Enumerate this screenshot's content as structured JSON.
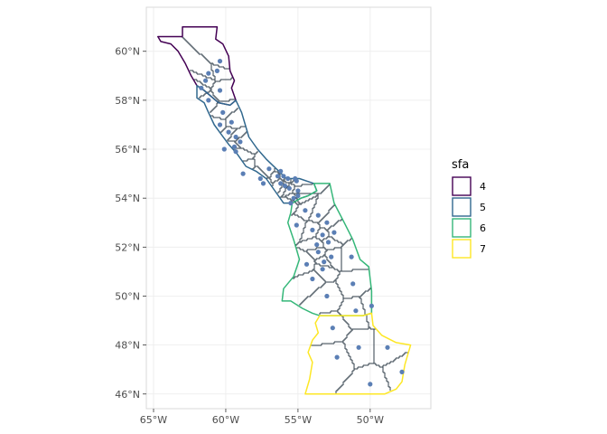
{
  "chart_data": {
    "type": "map",
    "title": "",
    "xlabel": "",
    "ylabel": "",
    "xlim": [
      -65.5,
      -45.8
    ],
    "ylim": [
      45.4,
      61.8
    ],
    "grid": true,
    "x_ticks": [
      {
        "value": -65,
        "label": "65°W"
      },
      {
        "value": -60,
        "label": "60°W"
      },
      {
        "value": -55,
        "label": "55°W"
      },
      {
        "value": -50,
        "label": "50°W"
      }
    ],
    "y_ticks": [
      {
        "value": 46,
        "label": "46°N"
      },
      {
        "value": 48,
        "label": "48°N"
      },
      {
        "value": 50,
        "label": "50°N"
      },
      {
        "value": 52,
        "label": "52°N"
      },
      {
        "value": 54,
        "label": "54°N"
      },
      {
        "value": 56,
        "label": "56°N"
      },
      {
        "value": 58,
        "label": "58°N"
      },
      {
        "value": 60,
        "label": "60°N"
      }
    ],
    "legend": {
      "title": "sfa",
      "position": "right",
      "items": [
        {
          "label": "4",
          "color": "#440154"
        },
        {
          "label": "5",
          "color": "#31688e"
        },
        {
          "label": "6",
          "color": "#35b779"
        },
        {
          "label": "7",
          "color": "#fde725"
        }
      ]
    },
    "colors": {
      "cells": "#2f3d48",
      "points": "#5b7fb5",
      "grid": "#ebebeb",
      "panel_border": "#d9d9d9"
    },
    "regions": [
      {
        "sfa": "4",
        "outline": [
          [
            -63,
            61
          ],
          [
            -60.6,
            61
          ],
          [
            -60.7,
            60.5
          ],
          [
            -60.2,
            60.3
          ],
          [
            -59.8,
            59.8
          ],
          [
            -59.7,
            59.2
          ],
          [
            -59.4,
            58.8
          ],
          [
            -59.6,
            58.5
          ],
          [
            -59.3,
            58.0
          ],
          [
            -59.7,
            57.8
          ],
          [
            -60.5,
            57.9
          ],
          [
            -61.5,
            58.4
          ],
          [
            -62.0,
            58.6
          ],
          [
            -62.4,
            59.0
          ],
          [
            -62.8,
            59.5
          ],
          [
            -63.3,
            60.0
          ],
          [
            -63.8,
            60.3
          ],
          [
            -64.5,
            60.4
          ],
          [
            -64.7,
            60.6
          ],
          [
            -63.0,
            60.6
          ],
          [
            -63,
            61
          ]
        ]
      },
      {
        "sfa": "5",
        "outline": [
          [
            -62.0,
            58.6
          ],
          [
            -61.5,
            58.4
          ],
          [
            -60.5,
            57.9
          ],
          [
            -59.7,
            57.8
          ],
          [
            -59.3,
            58.0
          ],
          [
            -58.9,
            57.5
          ],
          [
            -58.4,
            56.5
          ],
          [
            -57.8,
            56.0
          ],
          [
            -57.2,
            55.6
          ],
          [
            -56.5,
            55.2
          ],
          [
            -55.8,
            54.8
          ],
          [
            -54.9,
            54.8
          ],
          [
            -53.9,
            54.6
          ],
          [
            -53.7,
            54.3
          ],
          [
            -54.3,
            54.1
          ],
          [
            -54.8,
            54.0
          ],
          [
            -55.4,
            53.8
          ],
          [
            -56.0,
            53.8
          ],
          [
            -56.6,
            54.3
          ],
          [
            -57.2,
            54.8
          ],
          [
            -57.9,
            55.1
          ],
          [
            -58.6,
            55.3
          ],
          [
            -59.2,
            55.8
          ],
          [
            -59.8,
            56.2
          ],
          [
            -60.3,
            56.6
          ],
          [
            -60.8,
            57.0
          ],
          [
            -61.2,
            57.5
          ],
          [
            -61.5,
            57.9
          ],
          [
            -62.0,
            58.1
          ],
          [
            -62.0,
            58.6
          ]
        ]
      },
      {
        "sfa": "6",
        "outline": [
          [
            -55.4,
            53.8
          ],
          [
            -54.8,
            54.0
          ],
          [
            -54.3,
            54.1
          ],
          [
            -53.7,
            54.3
          ],
          [
            -53.9,
            54.6
          ],
          [
            -52.8,
            54.6
          ],
          [
            -52.5,
            53.8
          ],
          [
            -51.8,
            53.0
          ],
          [
            -51.2,
            52.3
          ],
          [
            -50.7,
            51.5
          ],
          [
            -50.1,
            51.2
          ],
          [
            -49.9,
            50.2
          ],
          [
            -49.9,
            49.3
          ],
          [
            -50.5,
            49.2
          ],
          [
            -51.9,
            49.2
          ],
          [
            -53.5,
            49.2
          ],
          [
            -54.0,
            49.3
          ],
          [
            -54.7,
            49.5
          ],
          [
            -55.5,
            49.8
          ],
          [
            -56.1,
            49.8
          ],
          [
            -56.0,
            50.3
          ],
          [
            -55.3,
            50.8
          ],
          [
            -54.9,
            51.5
          ],
          [
            -55.3,
            52.3
          ],
          [
            -55.7,
            53.0
          ],
          [
            -55.5,
            53.4
          ],
          [
            -55.4,
            53.8
          ]
        ]
      },
      {
        "sfa": "7",
        "outline": [
          [
            -53.5,
            49.2
          ],
          [
            -51.9,
            49.2
          ],
          [
            -50.5,
            49.2
          ],
          [
            -49.9,
            49.3
          ],
          [
            -49.8,
            48.8
          ],
          [
            -49.2,
            48.4
          ],
          [
            -48.2,
            48.1
          ],
          [
            -47.2,
            48.0
          ],
          [
            -47.6,
            47.2
          ],
          [
            -47.8,
            46.5
          ],
          [
            -48.2,
            46.2
          ],
          [
            -49.0,
            46.0
          ],
          [
            -51.0,
            46.0
          ],
          [
            -52.5,
            46.0
          ],
          [
            -54.5,
            46.0
          ],
          [
            -54.2,
            46.6
          ],
          [
            -54.0,
            47.3
          ],
          [
            -54.3,
            47.7
          ],
          [
            -54.0,
            48.2
          ],
          [
            -53.6,
            48.5
          ],
          [
            -53.8,
            48.9
          ],
          [
            -53.5,
            49.2
          ]
        ]
      }
    ],
    "points": [
      [
        -60.4,
        59.6
      ],
      [
        -60.6,
        59.2
      ],
      [
        -61.2,
        59.1
      ],
      [
        -61.4,
        58.8
      ],
      [
        -61.7,
        58.5
      ],
      [
        -61.2,
        58.0
      ],
      [
        -60.4,
        58.4
      ],
      [
        -60.2,
        57.5
      ],
      [
        -60.4,
        57.0
      ],
      [
        -59.6,
        57.1
      ],
      [
        -59.8,
        56.7
      ],
      [
        -59.3,
        56.5
      ],
      [
        -60.1,
        56.0
      ],
      [
        -59.4,
        56.1
      ],
      [
        -59.0,
        56.3
      ],
      [
        -59.3,
        55.9
      ],
      [
        -58.8,
        55.0
      ],
      [
        -57.6,
        54.8
      ],
      [
        -57.4,
        54.6
      ],
      [
        -57.0,
        55.2
      ],
      [
        -56.2,
        55.1
      ],
      [
        -56.0,
        54.9
      ],
      [
        -55.7,
        54.8
      ],
      [
        -55.2,
        54.8
      ],
      [
        -56.4,
        54.9
      ],
      [
        -56.2,
        54.6
      ],
      [
        -55.9,
        54.5
      ],
      [
        -55.6,
        54.4
      ],
      [
        -55.1,
        54.7
      ],
      [
        -55.0,
        54.3
      ],
      [
        -55.0,
        54.1
      ],
      [
        -55.3,
        54.0
      ],
      [
        -55.5,
        53.8
      ],
      [
        -54.5,
        53.5
      ],
      [
        -53.6,
        53.3
      ],
      [
        -53.0,
        53.0
      ],
      [
        -55.1,
        52.9
      ],
      [
        -54.0,
        52.7
      ],
      [
        -53.3,
        52.5
      ],
      [
        -52.5,
        52.6
      ],
      [
        -53.7,
        52.1
      ],
      [
        -52.9,
        52.2
      ],
      [
        -53.6,
        51.8
      ],
      [
        -52.7,
        51.6
      ],
      [
        -53.2,
        51.4
      ],
      [
        -53.3,
        51.1
      ],
      [
        -51.3,
        51.6
      ],
      [
        -54.4,
        51.3
      ],
      [
        -54.0,
        50.7
      ],
      [
        -53.0,
        50.0
      ],
      [
        -51.2,
        50.5
      ],
      [
        -49.9,
        49.6
      ],
      [
        -51.0,
        49.4
      ],
      [
        -52.6,
        48.7
      ],
      [
        -50.8,
        47.9
      ],
      [
        -52.3,
        47.5
      ],
      [
        -48.8,
        47.9
      ],
      [
        -47.8,
        46.9
      ],
      [
        -50.0,
        46.4
      ]
    ]
  }
}
